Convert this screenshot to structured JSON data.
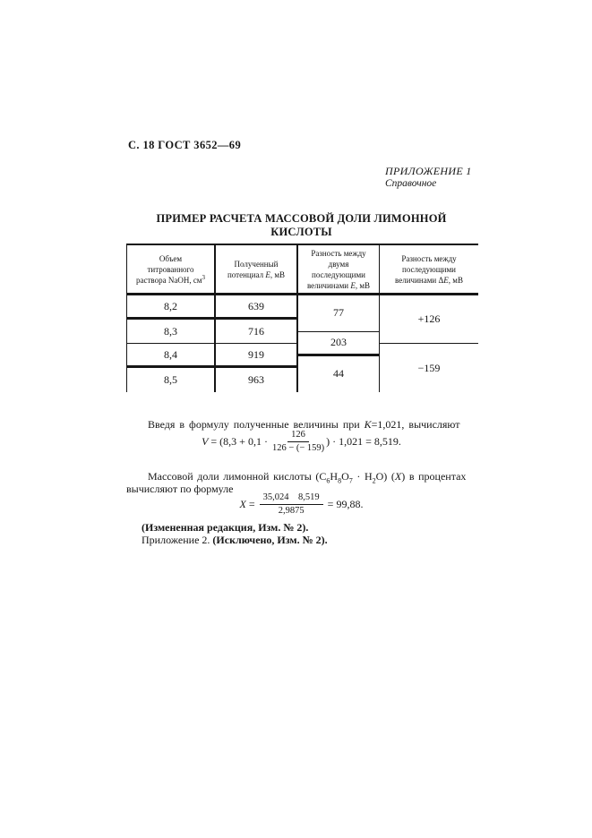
{
  "page": {
    "header": "С. 18 ГОСТ 3652—69",
    "appendix_title": "ПРИЛОЖЕНИЕ 1",
    "appendix_subtitle": "Справочное",
    "title": "ПРИМЕР РАСЧЕТА МАССОВОЙ ДОЛИ ЛИМОННОЙ КИСЛОТЫ"
  },
  "table": {
    "h1": {
      "l1": "Объем",
      "l2": "титрованного",
      "l3": "раствора NaOH, см",
      "sup": "3"
    },
    "h2": {
      "l1": "Полученный",
      "l2a": "потенциал ",
      "e": "E",
      "l2b": ", мВ"
    },
    "h3": {
      "l1": "Разность между",
      "l2": "двумя",
      "l3": "последующими",
      "l4a": "величинами ",
      "e": "E",
      "l4b": ", мВ"
    },
    "h4": {
      "l1": "Разность между",
      "l2": "последующими",
      "l3a": "величинами Δ",
      "e": "E",
      "l3b": ", мВ"
    },
    "volumes": [
      "8,2",
      "8,3",
      "8,4",
      "8,5"
    ],
    "potentials": [
      "639",
      "716",
      "919",
      "963"
    ],
    "e_diffs": [
      "77",
      "203",
      "44"
    ],
    "delta_diffs": [
      "+126",
      "−159"
    ]
  },
  "para1": {
    "t1": "Введя в формулу полученные величины при ",
    "k": "К",
    "t2": "=1,021, вычисляют"
  },
  "formula_v": {
    "lhs": "V",
    "t1": " = (8,3 + 0,1 · ",
    "num": "126",
    "den": "126 − (− 159)",
    "t2": ") · 1,021 = 8,519."
  },
  "para2": {
    "t1": "Массовой доли лимонной кислоты (C",
    "s1": "6",
    "t2": "H",
    "s2": "8",
    "t3": "O",
    "s3": "7",
    "t4": " · H",
    "s4": "2",
    "t5": "O) (",
    "x": "X",
    "t6": ") в процентах",
    "line2": "вычисляют по формуле"
  },
  "formula_x": {
    "lhs": "X",
    "t1": " = ",
    "num": "35,024   8,519",
    "den": "2,9875",
    "t2": " = 99,88."
  },
  "notes": {
    "amended": "(Измененная редакция, Изм. № 2).",
    "appendix2_normal": "Приложение 2. ",
    "appendix2_bold": "(Исключено, Изм. № 2)."
  }
}
